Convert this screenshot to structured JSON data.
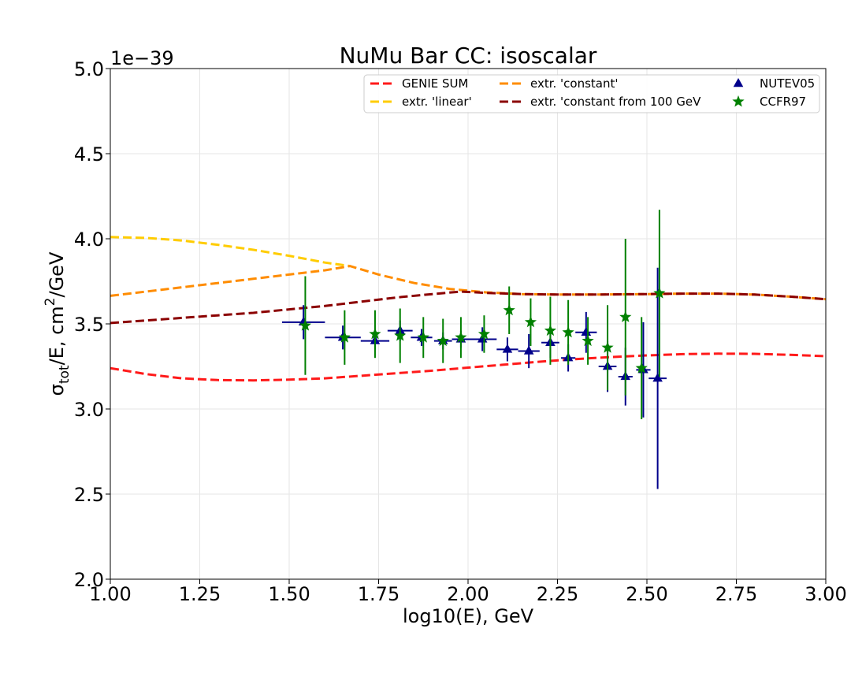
{
  "chart_data": {
    "type": "line",
    "title": "NuMu Bar CC: isoscalar",
    "offset_text": "1e−39",
    "xlabel": "log10(E), GeV",
    "ylabel": "σ_tot/E, cm²/GeV",
    "ylabel_parts": {
      "sigma": "σ",
      "sub": "tot",
      "mid": "/E, cm",
      "sup": "2",
      "end": "/GeV"
    },
    "xlim": [
      1.0,
      3.0
    ],
    "ylim": [
      2.0,
      5.0
    ],
    "x_ticks": [
      "1.00",
      "1.25",
      "1.50",
      "1.75",
      "2.00",
      "2.25",
      "2.50",
      "2.75",
      "3.00"
    ],
    "y_ticks": [
      "2.0",
      "2.5",
      "3.0",
      "3.5",
      "4.0",
      "4.5",
      "5.0"
    ],
    "grid": true,
    "legend_position": "top-right",
    "series": [
      {
        "name": "GENIE SUM",
        "kind": "line",
        "color": "#ff1a1a",
        "x": [
          1.0,
          1.1,
          1.2,
          1.3,
          1.4,
          1.5,
          1.6,
          1.7,
          1.8,
          1.9,
          2.0,
          2.1,
          2.2,
          2.3,
          2.4,
          2.5,
          2.6,
          2.7,
          2.8,
          2.9,
          3.0
        ],
        "y": [
          3.24,
          3.205,
          3.18,
          3.17,
          3.168,
          3.172,
          3.18,
          3.195,
          3.21,
          3.225,
          3.243,
          3.26,
          3.278,
          3.293,
          3.305,
          3.315,
          3.322,
          3.325,
          3.324,
          3.318,
          3.31
        ]
      },
      {
        "name": "extr. 'linear'",
        "kind": "line",
        "color": "#ffcc00",
        "x": [
          1.0,
          1.1,
          1.2,
          1.3,
          1.4,
          1.5,
          1.6,
          1.67
        ],
        "y": [
          4.01,
          4.005,
          3.99,
          3.965,
          3.935,
          3.9,
          3.86,
          3.84
        ]
      },
      {
        "name": "extr. 'constant'",
        "kind": "line",
        "color": "#ff8c00",
        "x": [
          1.0,
          1.1,
          1.2,
          1.3,
          1.4,
          1.5,
          1.6,
          1.67,
          1.75,
          1.85,
          1.95,
          2.05,
          2.15,
          2.25,
          2.35,
          2.5,
          2.6,
          2.7,
          2.8,
          2.9,
          3.0
        ],
        "y": [
          3.665,
          3.69,
          3.715,
          3.74,
          3.765,
          3.79,
          3.815,
          3.84,
          3.79,
          3.74,
          3.705,
          3.685,
          3.675,
          3.672,
          3.672,
          3.675,
          3.678,
          3.678,
          3.672,
          3.66,
          3.645
        ]
      },
      {
        "name": "extr. 'constant from 100 GeV",
        "kind": "line",
        "color": "#8b0000",
        "x": [
          1.0,
          1.1,
          1.2,
          1.3,
          1.4,
          1.5,
          1.6,
          1.7,
          1.8,
          1.9,
          1.98,
          2.05,
          2.15,
          2.25,
          2.35,
          2.5,
          2.6,
          2.7,
          2.8,
          2.9,
          3.0
        ],
        "y": [
          3.505,
          3.52,
          3.535,
          3.55,
          3.565,
          3.585,
          3.605,
          3.63,
          3.655,
          3.675,
          3.69,
          3.682,
          3.675,
          3.672,
          3.672,
          3.675,
          3.678,
          3.678,
          3.672,
          3.66,
          3.645
        ]
      },
      {
        "name": "NUTEV05",
        "kind": "scatter",
        "marker": "triangle",
        "color": "#00008b",
        "x": [
          1.54,
          1.65,
          1.74,
          1.81,
          1.87,
          1.93,
          1.98,
          2.04,
          2.11,
          2.17,
          2.23,
          2.28,
          2.33,
          2.39,
          2.44,
          2.49,
          2.53
        ],
        "y": [
          3.51,
          3.42,
          3.4,
          3.46,
          3.42,
          3.4,
          3.41,
          3.41,
          3.35,
          3.34,
          3.39,
          3.3,
          3.45,
          3.25,
          3.19,
          3.23,
          3.18
        ],
        "xerr": [
          0.06,
          0.05,
          0.04,
          0.035,
          0.03,
          0.025,
          0.025,
          0.04,
          0.03,
          0.03,
          0.025,
          0.02,
          0.03,
          0.025,
          0.02,
          0.02,
          0.025
        ],
        "yerr": [
          0.1,
          0.07,
          0.05,
          0.06,
          0.05,
          0.05,
          0.05,
          0.07,
          0.07,
          0.1,
          0.09,
          0.08,
          0.12,
          0.15,
          0.17,
          0.28,
          0.65
        ]
      },
      {
        "name": "CCFR97",
        "kind": "scatter",
        "marker": "star",
        "color": "#008000",
        "x": [
          1.545,
          1.655,
          1.74,
          1.81,
          1.875,
          1.93,
          1.98,
          2.045,
          2.115,
          2.175,
          2.23,
          2.28,
          2.335,
          2.39,
          2.44,
          2.485,
          2.535
        ],
        "y": [
          3.49,
          3.42,
          3.44,
          3.43,
          3.42,
          3.4,
          3.42,
          3.44,
          3.58,
          3.51,
          3.46,
          3.45,
          3.4,
          3.36,
          3.54,
          3.24,
          3.68
        ],
        "yerr": [
          0.29,
          0.16,
          0.14,
          0.16,
          0.12,
          0.13,
          0.12,
          0.11,
          0.14,
          0.14,
          0.2,
          0.19,
          0.14,
          0.25,
          0.46,
          0.3,
          0.49
        ]
      }
    ]
  }
}
